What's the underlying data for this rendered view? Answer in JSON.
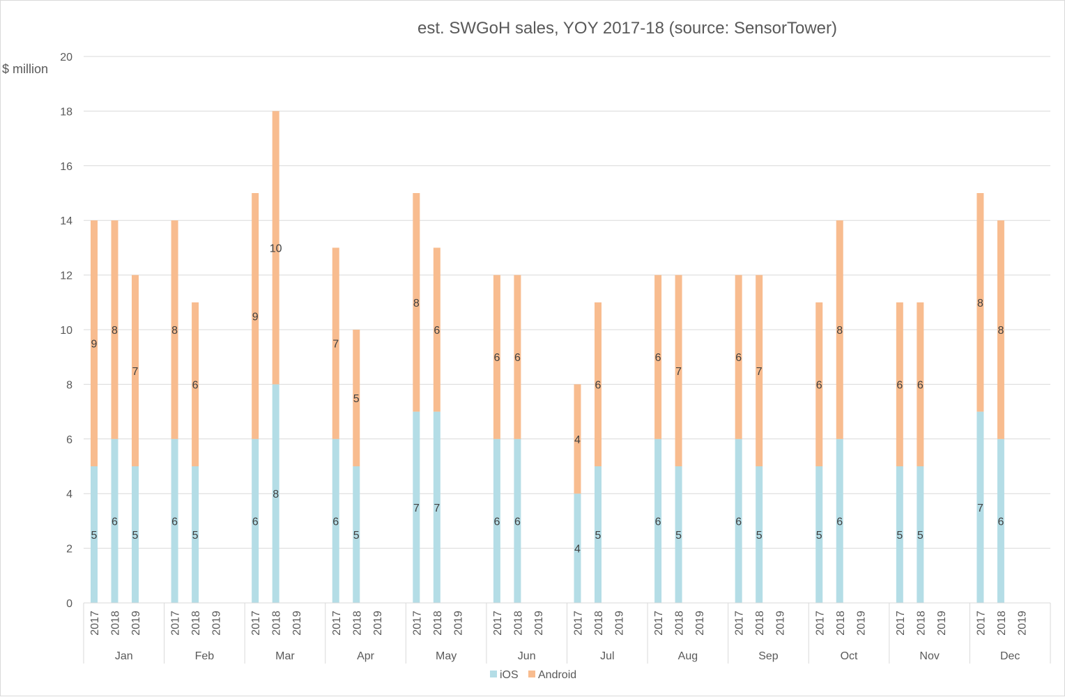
{
  "chart_data": {
    "type": "bar",
    "stacked": true,
    "title": "est. SWGoH sales, YOY 2017-18 (source: SensorTower)",
    "ylabel": "$ million",
    "xlabel": "",
    "ylim": [
      0,
      20
    ],
    "yticks": [
      0,
      2,
      4,
      6,
      8,
      10,
      12,
      14,
      16,
      18,
      20
    ],
    "grid": true,
    "legend_position": "bottom",
    "months": [
      "Jan",
      "Feb",
      "Mar",
      "Apr",
      "May",
      "Jun",
      "Jul",
      "Aug",
      "Sep",
      "Oct",
      "Nov",
      "Dec"
    ],
    "years": [
      "2017",
      "2018",
      "2019"
    ],
    "colors": {
      "iOS": "#b4dde6",
      "Android": "#f8bc8f"
    },
    "series": [
      {
        "name": "iOS",
        "values": [
          [
            5,
            6,
            5
          ],
          [
            6,
            5,
            null
          ],
          [
            6,
            8,
            null
          ],
          [
            6,
            5,
            null
          ],
          [
            7,
            7,
            null
          ],
          [
            6,
            6,
            null
          ],
          [
            4,
            5,
            null
          ],
          [
            6,
            5,
            null
          ],
          [
            6,
            5,
            null
          ],
          [
            5,
            6,
            null
          ],
          [
            5,
            5,
            null
          ],
          [
            7,
            6,
            null
          ]
        ]
      },
      {
        "name": "Android",
        "values": [
          [
            9,
            8,
            7
          ],
          [
            8,
            6,
            null
          ],
          [
            9,
            10,
            null
          ],
          [
            7,
            5,
            null
          ],
          [
            8,
            6,
            null
          ],
          [
            6,
            6,
            null
          ],
          [
            4,
            6,
            null
          ],
          [
            6,
            7,
            null
          ],
          [
            6,
            7,
            null
          ],
          [
            6,
            8,
            null
          ],
          [
            6,
            6,
            null
          ],
          [
            8,
            8,
            null
          ]
        ]
      }
    ]
  }
}
